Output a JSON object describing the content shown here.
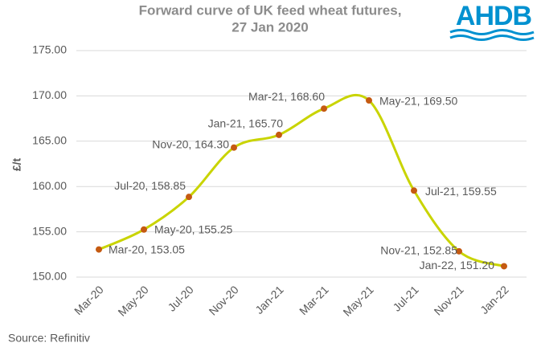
{
  "chart_data": {
    "type": "line",
    "title": "Forward curve of UK feed wheat futures,",
    "subtitle": "27 Jan 2020",
    "logo": "AHDB",
    "ylabel": "£/t",
    "source": "Source: Refinitiv",
    "categories": [
      "Mar-20",
      "May-20",
      "Jul-20",
      "Nov-20",
      "Jan-21",
      "Mar-21",
      "May-21",
      "Jul-21",
      "Nov-21",
      "Jan-22"
    ],
    "values": [
      153.05,
      155.25,
      158.85,
      164.3,
      165.7,
      168.6,
      169.5,
      159.55,
      152.85,
      151.2
    ],
    "value_labels": [
      "Mar-20, 153.05",
      "May-20, 155.25",
      "Jul-20, 158.85",
      "Nov-20, 164.30",
      "Jan-21, 165.70",
      "Mar-21, 168.60",
      "May-21, 169.50",
      "Jul-21, 159.55",
      "Nov-21, 152.85",
      "Jan-22, 151.20"
    ],
    "color": "#c9d400",
    "marker_color": "#c55a11",
    "smooth": true,
    "ylim": [
      150,
      175
    ],
    "yticks": [
      {
        "value": 150,
        "label": "150.00"
      },
      {
        "value": 155,
        "label": "155.00"
      },
      {
        "value": 160,
        "label": "160.00"
      },
      {
        "value": 165,
        "label": "165.00"
      },
      {
        "value": 170,
        "label": "170.00"
      },
      {
        "value": 175,
        "label": "175.00"
      }
    ],
    "grid": true
  }
}
